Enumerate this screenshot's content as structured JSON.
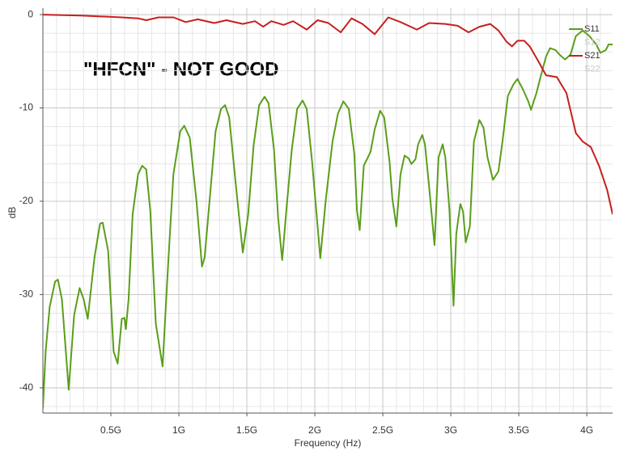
{
  "chart_data": {
    "type": "line",
    "annotation": "\"HFCN\" - NOT GOOD",
    "xlabel": "Frequency (Hz)",
    "ylabel": "dB",
    "xlim": [
      0,
      4.19
    ],
    "ylim": [
      -42.7,
      0.7
    ],
    "xticks": [
      {
        "value": 0.5,
        "label": "0.5G"
      },
      {
        "value": 1,
        "label": "1G"
      },
      {
        "value": 1.5,
        "label": "1.5G"
      },
      {
        "value": 2,
        "label": "2G"
      },
      {
        "value": 2.5,
        "label": "2.5G"
      },
      {
        "value": 3,
        "label": "3G"
      },
      {
        "value": 3.5,
        "label": "3.5G"
      },
      {
        "value": 4,
        "label": "4G"
      }
    ],
    "yticks": [
      0,
      -10,
      -20,
      -30,
      -40
    ],
    "grid": true,
    "legend": "top-right",
    "series": [
      {
        "name": "S11",
        "color": "#5a9e1a",
        "visible": true,
        "x": [
          0,
          0.02,
          0.05,
          0.09,
          0.11,
          0.14,
          0.19,
          0.23,
          0.27,
          0.3,
          0.33,
          0.38,
          0.42,
          0.44,
          0.48,
          0.52,
          0.55,
          0.58,
          0.6,
          0.61,
          0.63,
          0.66,
          0.7,
          0.73,
          0.76,
          0.79,
          0.83,
          0.88,
          0.92,
          0.96,
          1.01,
          1.04,
          1.08,
          1.13,
          1.17,
          1.19,
          1.23,
          1.27,
          1.31,
          1.34,
          1.37,
          1.42,
          1.47,
          1.51,
          1.55,
          1.59,
          1.63,
          1.66,
          1.7,
          1.73,
          1.76,
          1.79,
          1.83,
          1.87,
          1.91,
          1.94,
          1.98,
          2.04,
          2.08,
          2.13,
          2.17,
          2.21,
          2.25,
          2.29,
          2.31,
          2.33,
          2.36,
          2.41,
          2.44,
          2.48,
          2.51,
          2.55,
          2.57,
          2.6,
          2.63,
          2.66,
          2.69,
          2.71,
          2.74,
          2.76,
          2.79,
          2.81,
          2.84,
          2.88,
          2.91,
          2.94,
          2.96,
          2.99,
          3.02,
          3.04,
          3.07,
          3.09,
          3.11,
          3.14,
          3.17,
          3.21,
          3.24,
          3.27,
          3.31,
          3.35,
          3.38,
          3.42,
          3.46,
          3.49,
          3.53,
          3.57,
          3.59,
          3.63,
          3.66,
          3.7,
          3.73,
          3.77,
          3.8,
          3.84,
          3.88,
          3.92,
          3.97,
          4.02,
          4.07,
          4.1,
          4.14,
          4.16,
          4.19
        ],
        "values": [
          -42.2,
          -36.1,
          -31.3,
          -28.6,
          -28.4,
          -30.5,
          -40.2,
          -32.2,
          -29.3,
          -30.5,
          -32.6,
          -26.0,
          -22.4,
          -22.3,
          -25.3,
          -36.1,
          -37.4,
          -32.6,
          -32.5,
          -33.7,
          -30.5,
          -21.4,
          -17.1,
          -16.2,
          -16.6,
          -21.0,
          -33.1,
          -37.7,
          -27.0,
          -17.1,
          -12.5,
          -11.9,
          -13.2,
          -20.1,
          -27.0,
          -26.0,
          -19.2,
          -12.5,
          -10.1,
          -9.7,
          -11.0,
          -18.4,
          -25.5,
          -21.4,
          -14.0,
          -9.7,
          -8.8,
          -9.5,
          -14.5,
          -21.8,
          -26.3,
          -21.0,
          -14.5,
          -10.1,
          -9.2,
          -10.1,
          -15.8,
          -26.1,
          -19.9,
          -13.6,
          -10.6,
          -9.3,
          -10.1,
          -14.9,
          -21.0,
          -23.1,
          -16.2,
          -14.7,
          -12.3,
          -10.3,
          -11.0,
          -15.8,
          -19.7,
          -22.7,
          -17.1,
          -15.1,
          -15.4,
          -16.0,
          -15.5,
          -13.9,
          -12.9,
          -13.9,
          -18.4,
          -24.7,
          -15.3,
          -13.9,
          -15.3,
          -21.0,
          -31.2,
          -23.5,
          -20.3,
          -21.1,
          -24.4,
          -22.7,
          -13.6,
          -11.3,
          -12.1,
          -15.3,
          -17.7,
          -16.8,
          -13.6,
          -8.7,
          -7.5,
          -6.9,
          -8.0,
          -9.3,
          -10.2,
          -8.4,
          -6.7,
          -4.5,
          -3.6,
          -3.8,
          -4.3,
          -4.8,
          -4.3,
          -2.3,
          -1.7,
          -2.3,
          -3.2,
          -4.1,
          -3.8,
          -3.2,
          -3.2
        ]
      },
      {
        "name": "S12",
        "color": "#c8c8c8",
        "visible": false
      },
      {
        "name": "S21",
        "color": "#c81e1e",
        "visible": true,
        "x": [
          0,
          0.28,
          0.58,
          0.7,
          0.76,
          0.85,
          0.96,
          1.05,
          1.14,
          1.26,
          1.35,
          1.47,
          1.56,
          1.62,
          1.68,
          1.77,
          1.84,
          1.94,
          2.02,
          2.1,
          2.19,
          2.27,
          2.35,
          2.44,
          2.54,
          2.63,
          2.75,
          2.84,
          2.96,
          3.05,
          3.13,
          3.21,
          3.29,
          3.35,
          3.41,
          3.45,
          3.49,
          3.54,
          3.58,
          3.64,
          3.7,
          3.78,
          3.85,
          3.92,
          3.97,
          4.03,
          4.09,
          4.15,
          4.19
        ],
        "values": [
          0,
          -0.1,
          -0.3,
          -0.4,
          -0.6,
          -0.3,
          -0.3,
          -0.8,
          -0.5,
          -0.9,
          -0.6,
          -1.0,
          -0.7,
          -1.3,
          -0.7,
          -1.1,
          -0.7,
          -1.6,
          -0.6,
          -0.9,
          -1.9,
          -0.4,
          -1.0,
          -2.1,
          -0.3,
          -0.8,
          -1.6,
          -0.9,
          -1.0,
          -1.2,
          -1.9,
          -1.3,
          -1.0,
          -1.7,
          -2.9,
          -3.4,
          -2.8,
          -2.8,
          -3.4,
          -4.9,
          -6.5,
          -6.7,
          -8.4,
          -12.7,
          -13.6,
          -14.2,
          -16.2,
          -18.8,
          -21.4
        ]
      },
      {
        "name": "S22",
        "color": "#c8c8c8",
        "visible": false
      }
    ]
  }
}
